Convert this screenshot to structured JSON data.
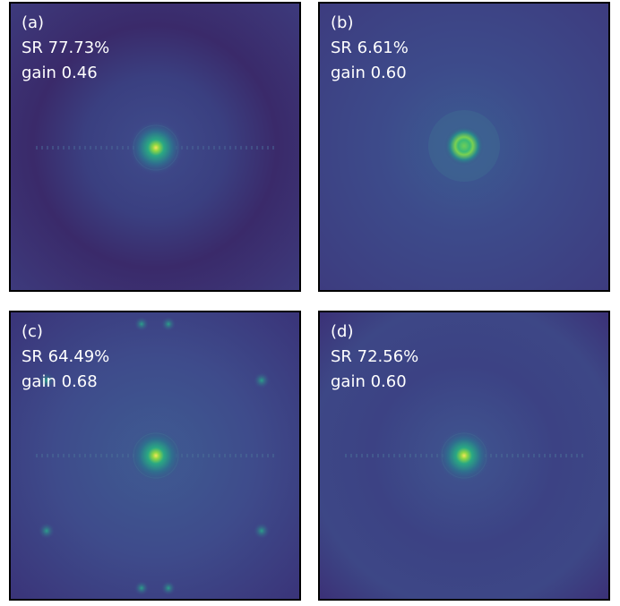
{
  "panels": [
    {
      "label": "(a)",
      "sr": "SR 77.73%",
      "gain": "gain 0.46"
    },
    {
      "label": "(b)",
      "sr": "SR 6.61%",
      "gain": "gain 0.60"
    },
    {
      "label": "(c)",
      "sr": "SR 64.49%",
      "gain": "gain 0.68"
    },
    {
      "label": "(d)",
      "sr": "SR 72.56%",
      "gain": "gain 0.60"
    }
  ]
}
